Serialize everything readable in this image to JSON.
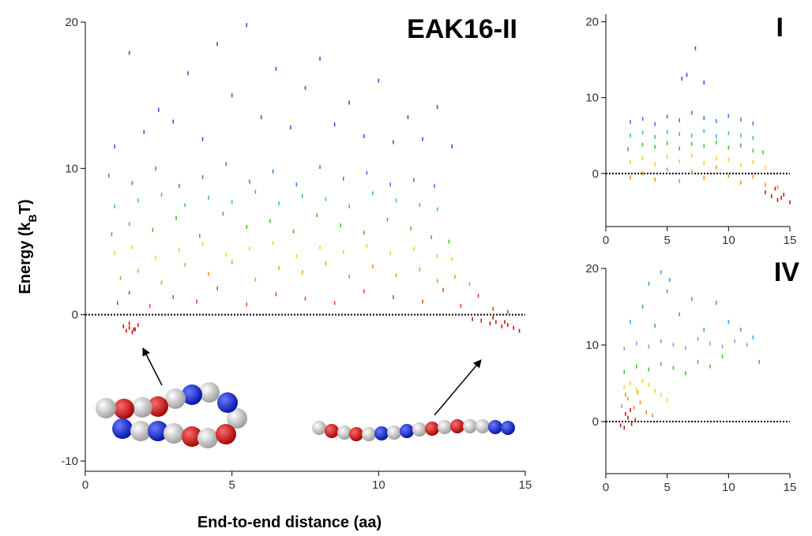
{
  "chart_data": [
    {
      "type": "scatter",
      "title": "EAK16-II",
      "xlabel": "End-to-end distance (aa)",
      "ylabel": [
        "Energy (k",
        "B",
        "T)"
      ],
      "xlim": [
        0,
        15
      ],
      "ylim": [
        -10.7,
        20
      ],
      "xticks": [
        0,
        5,
        10,
        15
      ],
      "yticks": [
        -10,
        0,
        10,
        20
      ],
      "reference_line": 0,
      "series": [
        {
          "color": "#cc1616",
          "x": [
            1.3,
            1.4,
            1.5,
            1.6,
            1.7,
            1.8,
            1.5,
            1.65,
            13.2,
            13.5,
            13.8,
            14.0,
            14.2,
            14.4,
            14.6,
            14.8,
            13.9,
            14.3
          ],
          "values": [
            -0.8,
            -1.1,
            -0.9,
            -1.2,
            -1.0,
            -0.7,
            -0.6,
            -1.0,
            -0.3,
            -0.4,
            -0.6,
            -0.5,
            -0.8,
            -0.7,
            -0.9,
            -1.1,
            -0.2,
            -0.5
          ]
        },
        {
          "color": "#e8451a",
          "x": [
            1.1,
            1.5,
            2.2,
            3.0,
            3.8,
            4.5,
            5.5,
            6.5,
            7.5,
            8.5,
            9.5,
            10.5,
            11.5,
            12.2,
            12.8,
            13.4,
            13.9,
            14.4
          ],
          "values": [
            0.8,
            1.5,
            0.6,
            1.2,
            0.9,
            1.8,
            0.7,
            1.4,
            1.1,
            0.8,
            1.6,
            1.2,
            0.9,
            1.7,
            0.6,
            1.3,
            0.4,
            0.2
          ]
        },
        {
          "color": "#f59a1c",
          "x": [
            1.2,
            1.8,
            2.6,
            3.4,
            4.2,
            5.0,
            5.8,
            6.6,
            7.4,
            8.2,
            9.0,
            9.8,
            10.6,
            11.4,
            12.0,
            12.6,
            13.1
          ],
          "values": [
            2.5,
            3.0,
            2.2,
            3.4,
            2.8,
            3.6,
            2.4,
            3.2,
            2.9,
            3.5,
            2.6,
            3.3,
            2.7,
            3.1,
            2.3,
            2.6,
            2.1
          ]
        },
        {
          "color": "#f2d21e",
          "x": [
            1.0,
            1.6,
            2.4,
            3.2,
            4.0,
            4.8,
            5.6,
            6.4,
            7.2,
            8.0,
            8.8,
            9.6,
            10.4,
            11.2,
            12.0,
            12.5
          ],
          "values": [
            4.2,
            4.6,
            3.9,
            4.4,
            4.8,
            4.1,
            4.5,
            4.9,
            4.0,
            4.6,
            4.3,
            4.7,
            4.2,
            4.5,
            4.0,
            3.8
          ]
        },
        {
          "color": "#3fc42a",
          "x": [
            0.9,
            1.5,
            2.3,
            3.1,
            3.9,
            4.7,
            5.5,
            6.3,
            7.1,
            7.9,
            8.7,
            9.5,
            10.3,
            11.1,
            11.8,
            12.4
          ],
          "values": [
            5.5,
            6.2,
            5.8,
            6.6,
            5.4,
            6.9,
            6.0,
            6.4,
            5.7,
            6.8,
            6.1,
            5.6,
            6.5,
            5.9,
            5.3,
            5.0
          ]
        },
        {
          "color": "#3cb8c8",
          "x": [
            1.0,
            1.8,
            2.6,
            3.4,
            4.2,
            5.0,
            5.8,
            6.6,
            7.4,
            8.2,
            9.0,
            9.8,
            10.6,
            11.4,
            12.0
          ],
          "values": [
            7.4,
            7.8,
            8.2,
            7.5,
            8.0,
            7.7,
            8.4,
            7.6,
            8.1,
            7.9,
            7.4,
            8.3,
            7.8,
            7.5,
            7.2
          ]
        },
        {
          "color": "#3c7ee0",
          "x": [
            0.8,
            1.6,
            2.4,
            3.2,
            4.0,
            4.8,
            5.6,
            6.4,
            7.2,
            8.0,
            8.8,
            9.6,
            10.4,
            11.2,
            11.9
          ],
          "values": [
            9.5,
            9.0,
            10.0,
            8.8,
            9.4,
            10.3,
            9.1,
            9.8,
            8.9,
            10.1,
            9.3,
            9.7,
            8.9,
            9.2,
            8.8
          ]
        },
        {
          "color": "#7a2ee0",
          "x": [
            1.0,
            1.5,
            2.0,
            2.5,
            3.0,
            3.5,
            4.0,
            4.5,
            5.0,
            5.5,
            6.0,
            6.5,
            7.0,
            7.5,
            8.0,
            8.5,
            9.0,
            9.5,
            10.0,
            10.5,
            11.0,
            11.5,
            12.0,
            12.5
          ],
          "values": [
            11.5,
            17.9,
            12.5,
            14.0,
            13.2,
            16.5,
            12.0,
            18.5,
            15.0,
            19.8,
            13.5,
            16.8,
            12.8,
            15.5,
            17.5,
            13.0,
            14.5,
            12.2,
            16.0,
            11.8,
            13.5,
            12.0,
            14.2,
            11.5
          ]
        }
      ]
    },
    {
      "type": "scatter",
      "title": "I",
      "xlim": [
        0,
        15
      ],
      "ylim": [
        -7,
        21
      ],
      "xticks": [
        0,
        5,
        10,
        15
      ],
      "yticks": [
        0,
        10,
        20
      ],
      "reference_line": 0,
      "series": [
        {
          "color": "#cc1616",
          "x": [
            13.0,
            13.5,
            14.0,
            14.5,
            15.0,
            13.8,
            14.3
          ],
          "values": [
            -2.5,
            -3.0,
            -3.5,
            -2.8,
            -3.8,
            -2.0,
            -3.2
          ]
        },
        {
          "color": "#f5901c",
          "x": [
            2,
            3,
            4,
            5,
            6,
            7,
            8,
            9,
            10,
            11,
            12,
            13,
            14
          ],
          "values": [
            -0.5,
            0,
            -0.8,
            0.5,
            -1,
            0.2,
            -0.6,
            0.8,
            -0.3,
            -1.2,
            -0.4,
            -1.5,
            -1.8
          ]
        },
        {
          "color": "#f2d21e",
          "x": [
            2,
            3,
            4,
            5,
            6,
            7,
            8,
            9,
            10,
            11,
            12,
            13
          ],
          "values": [
            1.5,
            2,
            1.2,
            2.2,
            1.6,
            2.4,
            1.4,
            2,
            1.8,
            1.1,
            1.5,
            0.8
          ]
        },
        {
          "color": "#3fc42a",
          "x": [
            1.8,
            3,
            4,
            5,
            6,
            7,
            8,
            9,
            10,
            11,
            12,
            12.8
          ],
          "values": [
            3.2,
            3.8,
            3.5,
            4,
            3.3,
            3.9,
            3.6,
            4.1,
            3.4,
            3.7,
            3.0,
            2.8
          ]
        },
        {
          "color": "#3cb8c8",
          "x": [
            2,
            3,
            4,
            5,
            6,
            7,
            8,
            9,
            10,
            11,
            12
          ],
          "values": [
            5,
            5.4,
            4.8,
            5.5,
            5.2,
            5,
            5.6,
            4.9,
            5.3,
            5,
            4.7
          ]
        },
        {
          "color": "#3c7ee0",
          "x": [
            2,
            3,
            4,
            5,
            6,
            7,
            8,
            9,
            10,
            11,
            12
          ],
          "values": [
            6.8,
            7.2,
            6.5,
            7.5,
            7,
            8,
            7.3,
            6.9,
            7.6,
            7.1,
            6.6
          ]
        },
        {
          "color": "#7a2ee0",
          "x": [
            6.2,
            7.3,
            8.0,
            6.6
          ],
          "values": [
            12.5,
            16.5,
            12,
            13
          ]
        }
      ]
    },
    {
      "type": "scatter",
      "title": "IV",
      "xlim": [
        0,
        15
      ],
      "ylim": [
        -6.8,
        20
      ],
      "xticks": [
        0,
        5,
        10,
        15
      ],
      "yticks": [
        0,
        10,
        20
      ],
      "reference_line": 0,
      "series": [
        {
          "color": "#cc1616",
          "x": [
            1.2,
            1.5,
            1.8,
            2.1,
            2.4,
            1.6,
            2.0
          ],
          "values": [
            -0.5,
            -0.8,
            0.5,
            -0.3,
            0.2,
            1.0,
            1.5
          ]
        },
        {
          "color": "#f5901c",
          "x": [
            1.3,
            1.8,
            2.3,
            2.8,
            3.3,
            3.8,
            1.6,
            2.6
          ],
          "values": [
            2,
            3,
            1.8,
            2.5,
            1.2,
            0.8,
            3.5,
            3.8
          ]
        },
        {
          "color": "#f2d21e",
          "x": [
            1.5,
            2,
            2.5,
            3,
            3.5,
            4,
            4.5,
            5
          ],
          "values": [
            4.5,
            5,
            4.2,
            5.3,
            4.8,
            4,
            3.5,
            2.8
          ]
        },
        {
          "color": "#3fc42a",
          "x": [
            1.5,
            2.5,
            3.5,
            4.5,
            5.5,
            6.5,
            7.5,
            8.5,
            9.5,
            12.5
          ],
          "values": [
            6.5,
            7.2,
            6.8,
            7.5,
            7,
            6.3,
            7.8,
            7.2,
            8.5,
            7.8
          ]
        },
        {
          "color": "#a08ce8",
          "x": [
            1.5,
            2.5,
            3.5,
            4.5,
            5.5,
            6.5,
            7.5,
            8.5,
            9.5,
            10.5,
            11.5
          ],
          "values": [
            9.5,
            10.2,
            9.8,
            10.5,
            10,
            9.6,
            10.8,
            10.2,
            9.8,
            10.5,
            10
          ]
        },
        {
          "color": "#3c9cd8",
          "x": [
            2,
            3,
            4,
            5,
            6,
            7,
            8,
            9,
            10,
            11,
            12,
            3.5,
            4.5,
            5.2
          ],
          "values": [
            13,
            15,
            12.5,
            17,
            14,
            16,
            12,
            15.5,
            13,
            12,
            11,
            18,
            19.5,
            18.5
          ]
        }
      ]
    }
  ]
}
